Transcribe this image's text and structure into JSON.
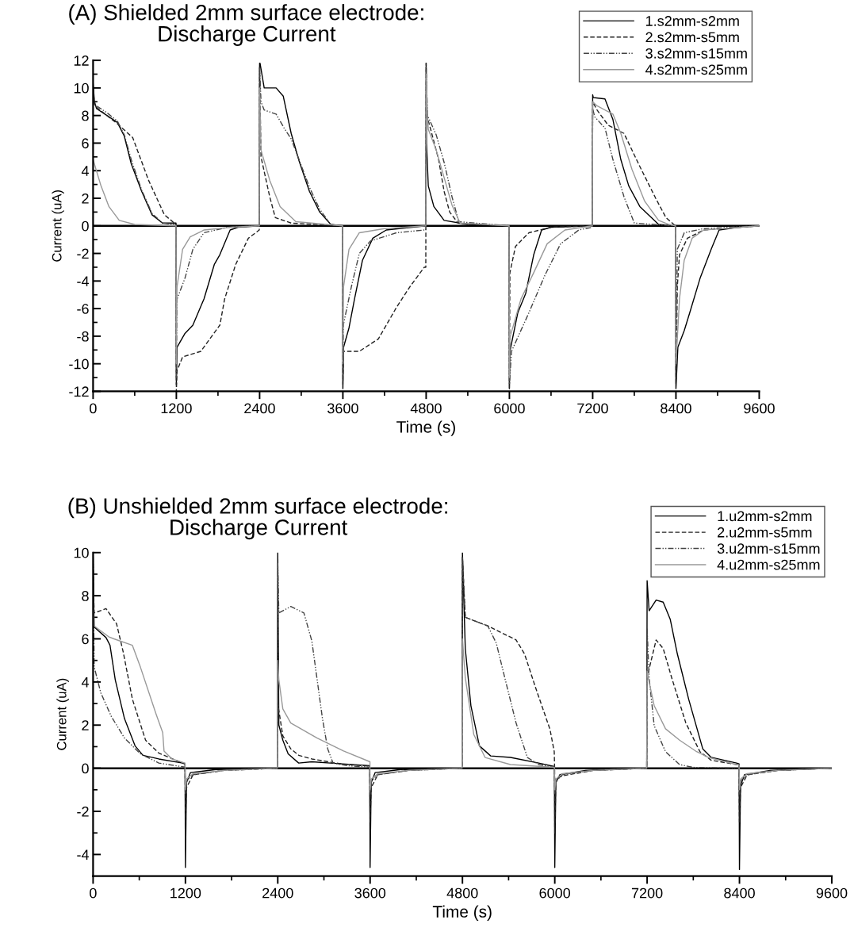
{
  "chart_data": [
    {
      "type": "line",
      "title": "(A) Shielded 2mm surface electrode:\nDischarge Current",
      "xlabel": "Time (s)",
      "ylabel": "Current (uA)",
      "xlim": [
        0,
        9600
      ],
      "xticks": [
        0,
        1200,
        2400,
        3600,
        4800,
        6000,
        7200,
        8400,
        9600
      ],
      "ylim": [
        -12,
        12
      ],
      "yticks": [
        -12,
        -10,
        -8,
        -6,
        -4,
        -2,
        0,
        2,
        4,
        6,
        8,
        10,
        12
      ],
      "grid": false,
      "legend": "top right",
      "marker": "none",
      "ref_lines": [
        {
          "axis": "y",
          "value": 0,
          "color": "#000000"
        }
      ],
      "series": [
        {
          "name": "1.s2mm-s2mm",
          "color": "#000000",
          "line_style": "solid",
          "x": [
            0,
            20,
            50,
            200,
            350,
            450,
            550,
            700,
            850,
            1000,
            1195,
            1200,
            1210,
            1324,
            1438,
            1598,
            1747,
            1826,
            1975,
            2089,
            2395,
            2400,
            2406,
            2466,
            2638,
            2741,
            2855,
            2969,
            3118,
            3266,
            3426,
            3595,
            3600,
            3610,
            3688,
            3768,
            3882,
            4031,
            4225,
            4600,
            4795,
            4800,
            4805,
            4831,
            4911,
            5059,
            5400,
            5995,
            6000,
            6007,
            6121,
            6235,
            6350,
            6464,
            6600,
            7195,
            7200,
            7210,
            7377,
            7492,
            7606,
            7720,
            7880,
            8150,
            8395,
            8400,
            8428,
            8519,
            8599,
            8748,
            8908,
            9022,
            9300,
            9600
          ],
          "values": [
            10.3,
            9.0,
            8.5,
            8.0,
            7.5,
            6.5,
            4.5,
            2.5,
            0.8,
            0.2,
            0.2,
            -11.5,
            -8.8,
            -7.8,
            -7.2,
            -5.3,
            -2.8,
            -2.1,
            -0.3,
            -0.1,
            0,
            11.8,
            11.8,
            10.0,
            10.0,
            9.4,
            6.7,
            4.7,
            2.5,
            1.0,
            0.1,
            0,
            -11.8,
            -8.8,
            -7.4,
            -5.3,
            -2.5,
            -0.9,
            -0.3,
            -0.1,
            0,
            11.8,
            6,
            2.9,
            1.4,
            0.4,
            0.1,
            0,
            -11.8,
            -9.1,
            -6.3,
            -4.9,
            -2.1,
            -0.3,
            -0.1,
            0,
            9.5,
            9.3,
            9.2,
            7.7,
            4.8,
            2.9,
            1.4,
            0.1,
            0,
            -11.8,
            -8.8,
            -7.6,
            -6.3,
            -3.8,
            -1.7,
            -0.3,
            -0.1,
            0
          ]
        },
        {
          "name": "2.s2mm-s5mm",
          "color": "#222222",
          "line_style": "dashed",
          "x": [
            0,
            20,
            50,
            200,
            350,
            571,
            800,
            1028,
            1195,
            1200,
            1210,
            1290,
            1553,
            1827,
            1896,
            2055,
            2238,
            2395,
            2400,
            2420,
            2546,
            2626,
            2855,
            3595,
            3600,
            3610,
            3837,
            4111,
            4374,
            4568,
            4773,
            4795,
            4800,
            4810,
            4865,
            4980,
            5059,
            5139,
            5260,
            5995,
            6000,
            6007,
            6087,
            6281,
            6600,
            7195,
            7200,
            7263,
            7423,
            7652,
            7880,
            8108,
            8256,
            8370,
            8395,
            8400,
            8420,
            8451,
            8565,
            8800,
            9600
          ],
          "values": [
            10.0,
            8.8,
            8.6,
            8.0,
            7.4,
            6.4,
            3.3,
            0.8,
            0.1,
            -12,
            -10.5,
            -9.5,
            -9.1,
            -7.2,
            -5.3,
            -2.8,
            -0.9,
            -0.3,
            11.5,
            5,
            2.1,
            0.6,
            0.2,
            0,
            -11.5,
            -9.1,
            -9.1,
            -8.2,
            -5.9,
            -4.4,
            -3.0,
            -3.0,
            11.8,
            8,
            7.0,
            4.8,
            2.5,
            1.0,
            0.2,
            0,
            -11.8,
            -3.4,
            -1.5,
            -0.5,
            -0.1,
            0,
            9.0,
            8.4,
            7.3,
            6.7,
            4.3,
            2.0,
            0.6,
            0.1,
            0,
            -11.5,
            -4.4,
            -2.1,
            -0.9,
            -0.3,
            0
          ]
        },
        {
          "name": "3.s2mm-s15mm",
          "color": "#444444",
          "line_style": "dotted",
          "x": [
            0,
            20,
            50,
            200,
            350,
            450,
            550,
            700,
            850,
            1000,
            1195,
            1200,
            1210,
            1324,
            1438,
            1598,
            1940,
            2395,
            2400,
            2420,
            2466,
            2638,
            2752,
            2855,
            2969,
            3118,
            3266,
            3426,
            3595,
            3600,
            3610,
            3723,
            3837,
            3996,
            4374,
            4773,
            4795,
            4800,
            4820,
            4945,
            5059,
            5173,
            5270,
            5995,
            6000,
            6030,
            6281,
            6510,
            6738,
            7000,
            7195,
            7200,
            7229,
            7377,
            7492,
            7652,
            7800,
            8395,
            8400,
            8420,
            8520,
            8800,
            9600
          ],
          "values": [
            9.5,
            8.8,
            8.7,
            8.2,
            7.6,
            6.6,
            4.8,
            2.6,
            0.9,
            0.2,
            0.1,
            -11,
            -5.3,
            -3.8,
            -1.7,
            -0.5,
            -0.1,
            0,
            11.5,
            9,
            8.4,
            8.1,
            7.1,
            6.3,
            4.8,
            2.8,
            1.2,
            0.1,
            0,
            -11,
            -7.1,
            -4.4,
            -2.0,
            -1.1,
            -0.5,
            -0.3,
            -0.3,
            11.5,
            8,
            6.6,
            4.6,
            2.1,
            0.3,
            0,
            -11.5,
            -9.1,
            -6.3,
            -3.6,
            -1.3,
            -0.3,
            -0.1,
            8.5,
            7.9,
            7.1,
            4.8,
            2.1,
            0.2,
            0,
            -11,
            -1.7,
            -0.5,
            -0.2,
            0
          ]
        },
        {
          "name": "4.s2mm-s25mm",
          "color": "#999999",
          "line_style": "solid",
          "x": [
            0,
            114,
            228,
            377,
            600,
            1195,
            1200,
            1210,
            1290,
            1400,
            1600,
            2000,
            2395,
            2400,
            2420,
            2546,
            2695,
            2922,
            3595,
            3600,
            3610,
            3688,
            3837,
            4200,
            4795,
            4800,
            4820,
            4831,
            4945,
            5059,
            5173,
            5290,
            5995,
            6000,
            6007,
            6167,
            6350,
            6544,
            6800,
            7195,
            7200,
            7263,
            7492,
            7606,
            7766,
            7948,
            8150,
            8300,
            8395,
            8400,
            8451,
            8519,
            8633,
            8800,
            9600
          ],
          "values": [
            4.8,
            2.9,
            1.4,
            0.4,
            0.1,
            0,
            -10,
            -4.4,
            -1.7,
            -0.8,
            -0.3,
            -0.1,
            0,
            10,
            5.5,
            3.3,
            1.4,
            0.3,
            0,
            -10,
            -4.4,
            -1.7,
            -0.5,
            -0.2,
            0,
            11,
            8,
            7.0,
            5.5,
            3.5,
            1.5,
            0.2,
            0,
            -11,
            -8.1,
            -5.3,
            -3.4,
            -1.3,
            -0.3,
            0,
            9.0,
            8.7,
            8.1,
            6.7,
            4.1,
            1.8,
            0.4,
            0.1,
            0,
            -10,
            -5.3,
            -2.5,
            -0.9,
            -0.3,
            0
          ]
        }
      ]
    },
    {
      "type": "line",
      "title": "(B) Unshielded 2mm surface electrode:\nDischarge Current",
      "xlabel": "Time (s)",
      "ylabel": "Current (uA)",
      "xlim": [
        0,
        9600
      ],
      "xticks": [
        0,
        1200,
        2400,
        3600,
        4800,
        6000,
        7200,
        8400,
        9600
      ],
      "ylim": [
        -5,
        10
      ],
      "yticks": [
        -4,
        -2,
        0,
        2,
        4,
        6,
        8,
        10
      ],
      "grid": false,
      "legend": "top right",
      "marker": "none",
      "ref_lines": [
        {
          "axis": "y",
          "value": 0,
          "color": "#000000"
        }
      ],
      "series": [
        {
          "name": "1.u2mm-s2mm",
          "color": "#000000",
          "line_style": "solid",
          "x": [
            0,
            14,
            168,
            220,
            288,
            408,
            545,
            648,
            854,
            1163,
            1195,
            1200,
            1214,
            1266,
            1600,
            2395,
            2400,
            2414,
            2466,
            2535,
            2672,
            2843,
            3083,
            3595,
            3600,
            3614,
            3666,
            4000,
            4795,
            4800,
            4837,
            4910,
            5020,
            5167,
            5424,
            5791,
            5995,
            6000,
            6014,
            6066,
            6400,
            7195,
            7200,
            7226,
            7317,
            7409,
            7501,
            7593,
            7740,
            7923,
            8033,
            8363,
            8395,
            8400,
            8414,
            8466,
            8800,
            9600
          ],
          "values": [
            10,
            6.55,
            6.06,
            5.7,
            4.1,
            2.3,
            1.04,
            0.6,
            0.43,
            0.24,
            0.2,
            -4.6,
            -0.67,
            -0.2,
            -0.06,
            0,
            10,
            2.0,
            1.3,
            0.67,
            0.24,
            0.3,
            0.24,
            0.12,
            -4.6,
            -0.67,
            -0.2,
            -0.06,
            0,
            10,
            5.55,
            2.9,
            1.04,
            0.57,
            0.5,
            0.24,
            0.08,
            -4.6,
            -0.67,
            -0.3,
            -0.1,
            0,
            8.7,
            7.3,
            7.8,
            7.7,
            6.9,
            5.3,
            3.2,
            0.9,
            0.5,
            0.24,
            0.2,
            -4.7,
            -0.8,
            -0.3,
            -0.1,
            0
          ]
        },
        {
          "name": "2.u2mm-s5mm",
          "color": "#222222",
          "line_style": "dashed",
          "x": [
            0,
            14,
            168,
            305,
            391,
            511,
            682,
            854,
            1163,
            1195,
            1200,
            1214,
            1300,
            1700,
            2395,
            2400,
            2466,
            2569,
            2672,
            2843,
            3255,
            3595,
            3600,
            3614,
            3700,
            4100,
            4795,
            4800,
            4837,
            5130,
            5497,
            5607,
            5754,
            5938,
            5993,
            5998,
            6000,
            6014,
            6100,
            6500,
            7195,
            7200,
            7226,
            7317,
            7409,
            7519,
            7703,
            7886,
            8033,
            8363,
            8395,
            8400,
            8414,
            8500,
            8900,
            9600
          ],
          "values": [
            9.5,
            7.2,
            7.4,
            6.7,
            5.4,
            3.2,
            1.3,
            0.7,
            0.24,
            0.2,
            -2.5,
            -0.9,
            -0.3,
            -0.1,
            0,
            3.0,
            1.5,
            0.9,
            0.6,
            0.43,
            0.18,
            0.1,
            -2.5,
            -0.9,
            -0.3,
            -0.1,
            0,
            9.8,
            7.0,
            6.6,
            5.95,
            5.3,
            3.7,
            1.8,
            0.77,
            0,
            -3,
            -0.5,
            -0.35,
            -0.1,
            0,
            4.0,
            4.6,
            5.95,
            5.55,
            4.2,
            2.1,
            0.77,
            0.37,
            0.17,
            0.15,
            -2.5,
            -0.9,
            -0.3,
            -0.1,
            0
          ]
        },
        {
          "name": "3.u2mm-s15mm",
          "color": "#444444",
          "line_style": "dotted",
          "x": [
            0,
            14,
            100,
            237,
            408,
            614,
            854,
            1195,
            1200,
            1214,
            1300,
            1700,
            2395,
            2400,
            2414,
            2569,
            2740,
            2843,
            2912,
            2981,
            3049,
            3118,
            3300,
            3595,
            3600,
            3614,
            3700,
            4100,
            4795,
            4800,
            4837,
            5130,
            5240,
            5350,
            5497,
            5644,
            5791,
            5995,
            6000,
            6014,
            6100,
            6500,
            7195,
            7200,
            7226,
            7292,
            7439,
            7622,
            7800,
            8395,
            8400,
            8414,
            8500,
            8900,
            9600
          ],
          "values": [
            9.8,
            4.7,
            3.5,
            2.4,
            1.4,
            0.67,
            0.24,
            0.05,
            -1.2,
            -0.6,
            -0.3,
            -0.1,
            0,
            9.5,
            7.2,
            7.5,
            7.2,
            5.9,
            4.1,
            2.3,
            0.9,
            0.24,
            0.12,
            0.05,
            -1.2,
            -0.6,
            -0.3,
            -0.1,
            0,
            9.8,
            7.0,
            6.6,
            5.8,
            4.2,
            2.1,
            0.5,
            0.17,
            0.05,
            -1.2,
            -0.6,
            -0.3,
            -0.1,
            0,
            6.5,
            4.2,
            1.97,
            0.77,
            0.17,
            0.04,
            0,
            -1.2,
            -0.6,
            -0.3,
            -0.1,
            0
          ]
        },
        {
          "name": "4.u2mm-s25mm",
          "color": "#999999",
          "line_style": "solid",
          "x": [
            0,
            14,
            202,
            271,
            511,
            614,
            820,
            905,
            922,
            1025,
            1195,
            1200,
            1214,
            1300,
            1700,
            2395,
            2400,
            2414,
            2466,
            2569,
            2912,
            3255,
            3598,
            3600,
            3614,
            3700,
            4100,
            4795,
            4800,
            4837,
            4947,
            5094,
            5424,
            5995,
            6000,
            6014,
            6100,
            6500,
            7195,
            7200,
            7226,
            7292,
            7439,
            7622,
            7843,
            8000,
            8363,
            8395,
            8400,
            8414,
            8500,
            8900,
            9600
          ],
          "values": [
            8.0,
            6.6,
            6.1,
            6.0,
            5.7,
            4.7,
            2.5,
            1.65,
            0.8,
            0.43,
            0.24,
            -1.0,
            -0.5,
            -0.25,
            -0.1,
            0,
            5.0,
            4.1,
            2.75,
            2.1,
            1.4,
            0.8,
            0.3,
            -1.0,
            -0.5,
            -0.25,
            -0.1,
            0,
            6.0,
            4.2,
            1.57,
            0.5,
            0.17,
            0.04,
            -1.0,
            -0.5,
            -0.25,
            -0.1,
            0,
            4.5,
            4.0,
            2.9,
            1.83,
            1.3,
            0.77,
            0.5,
            0.17,
            0.15,
            -1.0,
            -0.5,
            -0.25,
            -0.1,
            0
          ]
        }
      ]
    }
  ]
}
